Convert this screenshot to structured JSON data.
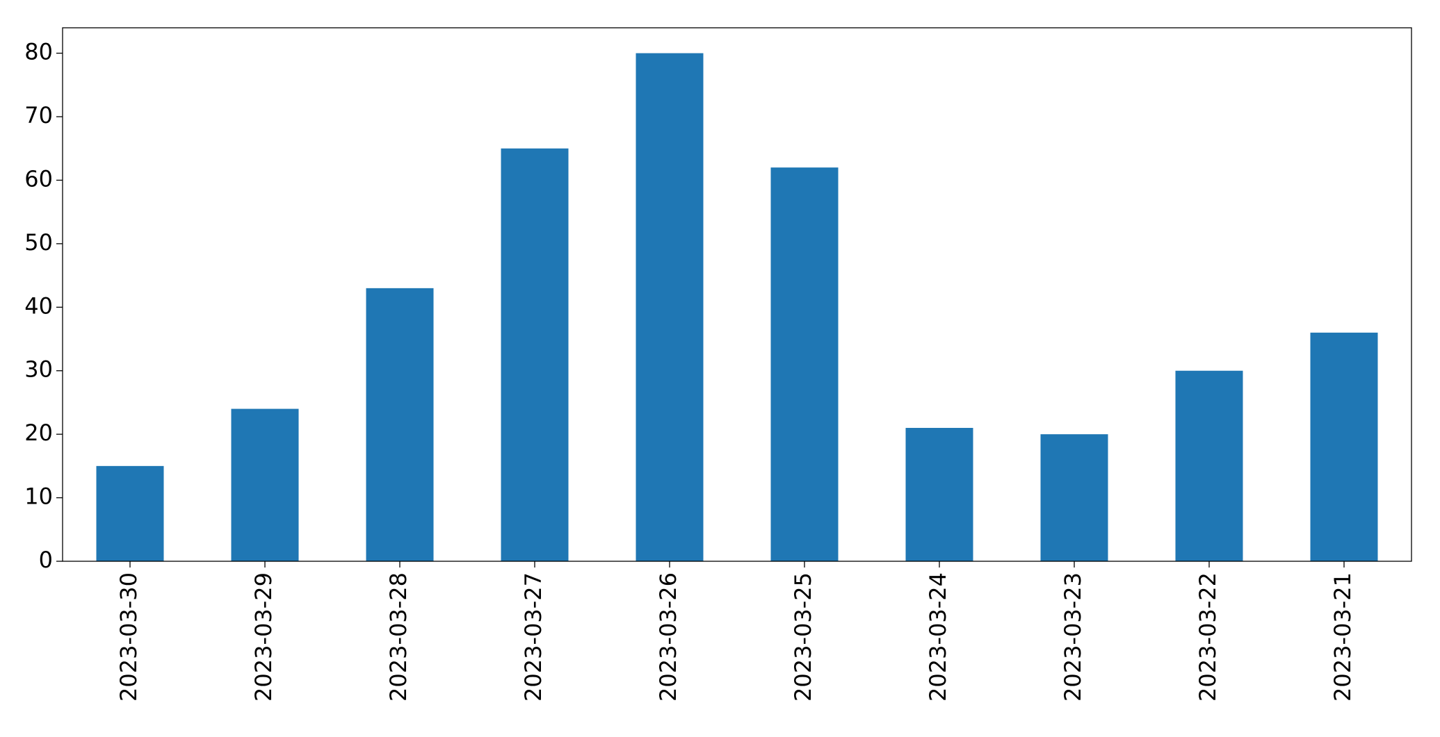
{
  "chart_data": {
    "type": "bar",
    "categories": [
      "2023-03-30",
      "2023-03-29",
      "2023-03-28",
      "2023-03-27",
      "2023-03-26",
      "2023-03-25",
      "2023-03-24",
      "2023-03-23",
      "2023-03-22",
      "2023-03-21"
    ],
    "values": [
      15,
      24,
      43,
      65,
      80,
      62,
      21,
      20,
      30,
      36
    ],
    "color": "#1f77b4",
    "ylim": [
      0,
      84
    ],
    "yticks": [
      0,
      10,
      20,
      30,
      40,
      50,
      60,
      70,
      80
    ],
    "grid": false
  }
}
